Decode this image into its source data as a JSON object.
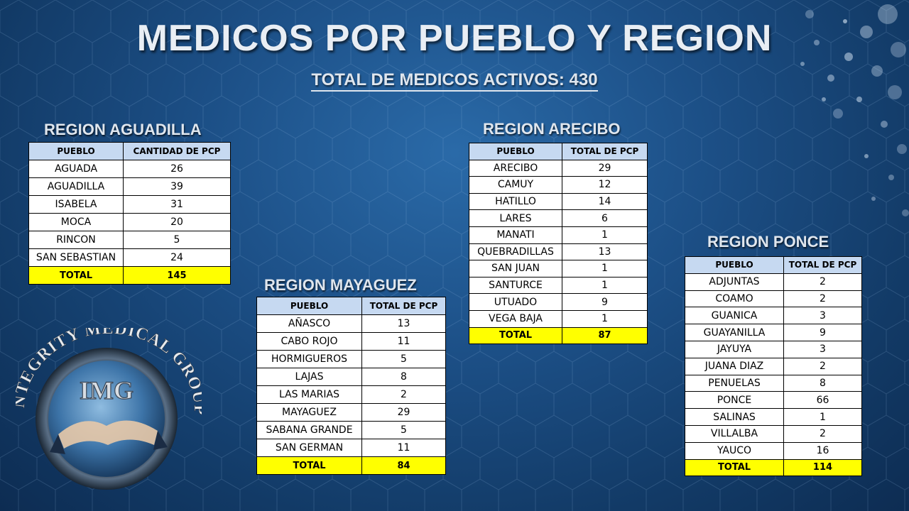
{
  "title": "MEDICOS POR PUEBLO Y REGION",
  "subtitle": "TOTAL DE MEDICOS ACTIVOS: 430",
  "logo": {
    "text_arc": "INTEGRITY MEDICAL GROUP",
    "initials": "IMG"
  },
  "regions": {
    "aguadilla": {
      "title": "REGION AGUADILLA",
      "headers": [
        "PUEBLO",
        "CANTIDAD DE PCP"
      ],
      "rows": [
        [
          "AGUADA",
          "26"
        ],
        [
          "AGUADILLA",
          "39"
        ],
        [
          "ISABELA",
          "31"
        ],
        [
          "MOCA",
          "20"
        ],
        [
          "RINCON",
          "5"
        ],
        [
          "SAN SEBASTIAN",
          "24"
        ]
      ],
      "total": [
        "TOTAL",
        "145"
      ]
    },
    "arecibo": {
      "title": "REGION ARECIBO",
      "headers": [
        "PUEBLO",
        "TOTAL DE PCP"
      ],
      "rows": [
        [
          "ARECIBO",
          "29"
        ],
        [
          "CAMUY",
          "12"
        ],
        [
          "HATILLO",
          "14"
        ],
        [
          "LARES",
          "6"
        ],
        [
          "MANATI",
          "1"
        ],
        [
          "QUEBRADILLAS",
          "13"
        ],
        [
          "SAN JUAN",
          "1"
        ],
        [
          "SANTURCE",
          "1"
        ],
        [
          "UTUADO",
          "9"
        ],
        [
          "VEGA BAJA",
          "1"
        ]
      ],
      "total": [
        "TOTAL",
        "87"
      ]
    },
    "mayaguez": {
      "title": "REGION MAYAGUEZ",
      "headers": [
        "PUEBLO",
        "TOTAL DE PCP"
      ],
      "rows": [
        [
          "AÑASCO",
          "13"
        ],
        [
          "CABO ROJO",
          "11"
        ],
        [
          "HORMIGUEROS",
          "5"
        ],
        [
          "LAJAS",
          "8"
        ],
        [
          "LAS MARIAS",
          "2"
        ],
        [
          "MAYAGUEZ",
          "29"
        ],
        [
          "SABANA GRANDE",
          "5"
        ],
        [
          "SAN GERMAN",
          "11"
        ]
      ],
      "total": [
        "TOTAL",
        "84"
      ]
    },
    "ponce": {
      "title": "REGION PONCE",
      "headers": [
        "PUEBLO",
        "TOTAL DE PCP"
      ],
      "rows": [
        [
          "ADJUNTAS",
          "2"
        ],
        [
          "COAMO",
          "2"
        ],
        [
          "GUANICA",
          "3"
        ],
        [
          "GUAYANILLA",
          "9"
        ],
        [
          "JAYUYA",
          "3"
        ],
        [
          "JUANA DIAZ",
          "2"
        ],
        [
          "PENUELAS",
          "8"
        ],
        [
          "PONCE",
          "66"
        ],
        [
          "SALINAS",
          "1"
        ],
        [
          "VILLALBA",
          "2"
        ],
        [
          "YAUCO",
          "16"
        ]
      ],
      "total": [
        "TOTAL",
        "114"
      ]
    }
  }
}
